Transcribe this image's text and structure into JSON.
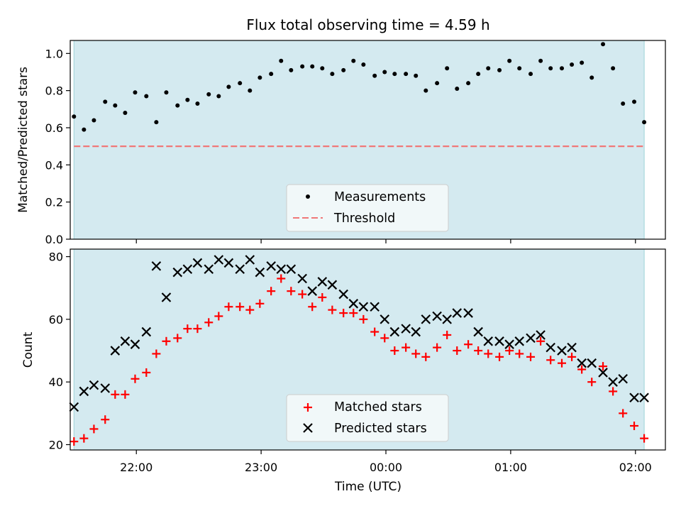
{
  "chart_data": {
    "title": "Flux total observing time = 4.59 h",
    "xlabel": "Time (UTC)",
    "x_ticks": [
      "22:00",
      "23:00",
      "00:00",
      "01:00",
      "02:00"
    ],
    "x_tick_hours": [
      22,
      23,
      24,
      25,
      26
    ],
    "x_range_hours": [
      21.47,
      26.24
    ],
    "shaded_interval_hours": [
      21.5,
      26.07
    ],
    "panels": [
      {
        "type": "scatter",
        "ylabel": "Matched/Predicted stars",
        "ylim": [
          0,
          1.07
        ],
        "y_ticks": [
          "0.0",
          "0.2",
          "0.4",
          "0.6",
          "0.8",
          "1.0"
        ],
        "y_tick_values": [
          0,
          0.2,
          0.4,
          0.6,
          0.8,
          1.0
        ],
        "legend": {
          "position": "lower center"
        },
        "threshold": {
          "name": "Threshold",
          "value": 0.5,
          "color": "#f07878"
        },
        "series": [
          {
            "name": "Measurements",
            "marker": "dot",
            "color": "#000000",
            "x": [
              21.5,
              21.58,
              21.66,
              21.75,
              21.83,
              21.91,
              21.99,
              22.08,
              22.16,
              22.24,
              22.33,
              22.41,
              22.49,
              22.58,
              22.66,
              22.74,
              22.83,
              22.91,
              22.99,
              23.08,
              23.16,
              23.24,
              23.33,
              23.41,
              23.49,
              23.57,
              23.66,
              23.74,
              23.82,
              23.91,
              23.99,
              24.07,
              24.16,
              24.24,
              24.32,
              24.41,
              24.49,
              24.57,
              24.66,
              24.74,
              24.82,
              24.91,
              24.99,
              25.07,
              25.16,
              25.24,
              25.32,
              25.41,
              25.49,
              25.57,
              25.65,
              25.74,
              25.82,
              25.9,
              25.99,
              26.07
            ],
            "y": [
              0.66,
              0.59,
              0.64,
              0.74,
              0.72,
              0.68,
              0.79,
              0.77,
              0.63,
              0.79,
              0.72,
              0.75,
              0.73,
              0.78,
              0.77,
              0.82,
              0.84,
              0.8,
              0.87,
              0.89,
              0.96,
              0.91,
              0.93,
              0.93,
              0.92,
              0.89,
              0.91,
              0.96,
              0.94,
              0.88,
              0.9,
              0.89,
              0.89,
              0.88,
              0.8,
              0.84,
              0.92,
              0.81,
              0.84,
              0.89,
              0.92,
              0.91,
              0.96,
              0.92,
              0.89,
              0.96,
              0.92,
              0.92,
              0.94,
              0.95,
              0.87,
              1.05,
              0.92,
              0.73,
              0.74,
              0.63
            ]
          }
        ]
      },
      {
        "type": "scatter",
        "ylabel": "Count",
        "ylim": [
          18.3,
          82.4
        ],
        "y_ticks": [
          "20",
          "40",
          "60",
          "80"
        ],
        "y_tick_values": [
          20,
          40,
          60,
          80
        ],
        "legend": {
          "position": "lower center"
        },
        "series": [
          {
            "name": "Matched stars",
            "marker": "plus",
            "color": "#ff0000",
            "x": [
              21.5,
              21.58,
              21.66,
              21.75,
              21.83,
              21.91,
              21.99,
              22.08,
              22.16,
              22.24,
              22.33,
              22.41,
              22.49,
              22.58,
              22.66,
              22.74,
              22.83,
              22.91,
              22.99,
              23.08,
              23.16,
              23.24,
              23.33,
              23.41,
              23.49,
              23.57,
              23.66,
              23.74,
              23.82,
              23.91,
              23.99,
              24.07,
              24.16,
              24.24,
              24.32,
              24.41,
              24.49,
              24.57,
              24.66,
              24.74,
              24.82,
              24.91,
              24.99,
              25.07,
              25.16,
              25.24,
              25.32,
              25.41,
              25.49,
              25.57,
              25.65,
              25.74,
              25.82,
              25.9,
              25.99,
              26.07
            ],
            "y": [
              21,
              22,
              25,
              28,
              36,
              36,
              41,
              43,
              49,
              53,
              54,
              57,
              57,
              59,
              61,
              64,
              64,
              63,
              65,
              69,
              73,
              69,
              68,
              64,
              67,
              63,
              62,
              62,
              60,
              56,
              54,
              50,
              51,
              49,
              48,
              51,
              55,
              50,
              52,
              50,
              49,
              48,
              50,
              49,
              48,
              53,
              47,
              46,
              48,
              44,
              40,
              45,
              37,
              30,
              26,
              22
            ]
          },
          {
            "name": "Predicted stars",
            "marker": "x",
            "color": "#000000",
            "x": [
              21.5,
              21.58,
              21.66,
              21.75,
              21.83,
              21.91,
              21.99,
              22.08,
              22.16,
              22.24,
              22.33,
              22.41,
              22.49,
              22.58,
              22.66,
              22.74,
              22.83,
              22.91,
              22.99,
              23.08,
              23.16,
              23.24,
              23.33,
              23.41,
              23.49,
              23.57,
              23.66,
              23.74,
              23.82,
              23.91,
              23.99,
              24.07,
              24.16,
              24.24,
              24.32,
              24.41,
              24.49,
              24.57,
              24.66,
              24.74,
              24.82,
              24.91,
              24.99,
              25.07,
              25.16,
              25.24,
              25.32,
              25.41,
              25.49,
              25.57,
              25.65,
              25.74,
              25.82,
              25.9,
              25.99,
              26.07
            ],
            "y": [
              32,
              37,
              39,
              38,
              50,
              53,
              52,
              56,
              77,
              67,
              75,
              76,
              78,
              76,
              79,
              78,
              76,
              79,
              75,
              77,
              76,
              76,
              73,
              69,
              72,
              71,
              68,
              65,
              64,
              64,
              60,
              56,
              57,
              56,
              60,
              61,
              60,
              62,
              62,
              56,
              53,
              53,
              52,
              53,
              54,
              55,
              51,
              50,
              51,
              46,
              46,
              43,
              40,
              41,
              35,
              35
            ]
          }
        ]
      }
    ],
    "colors": {
      "shade": "#d4eaf0",
      "shade_edge": "#a9d8dd"
    }
  }
}
